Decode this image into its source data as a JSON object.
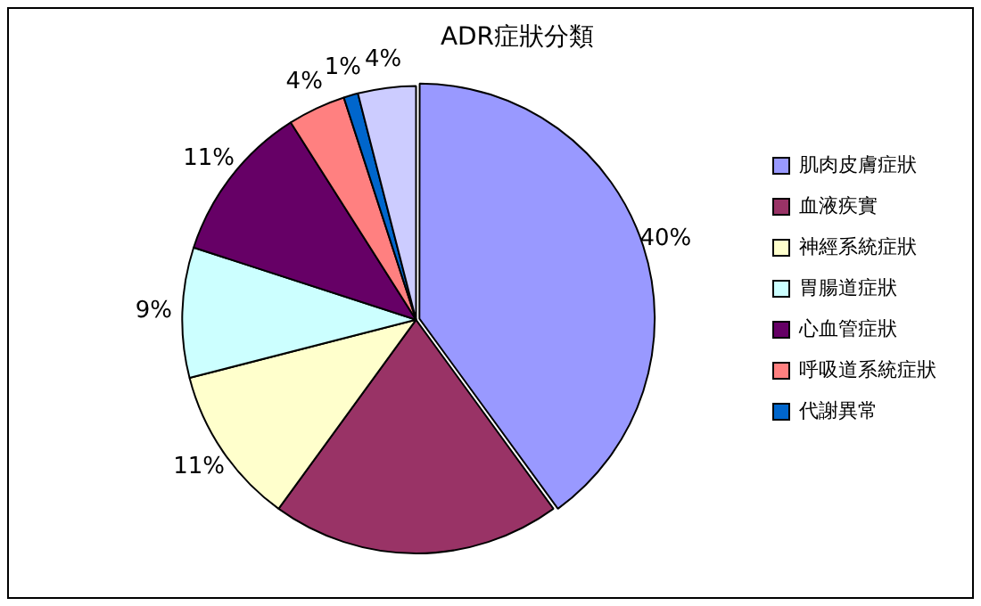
{
  "chart_data": {
    "type": "pie",
    "title": "ADR症狀分類",
    "categories": [
      "肌肉皮膚症狀",
      "血液疾實",
      "神經系統症狀",
      "胃腸道症狀",
      "心血管症狀",
      "呼吸道系統症狀",
      "代謝異常",
      null
    ],
    "values": [
      40,
      20,
      11,
      9,
      11,
      4,
      1,
      4
    ],
    "colors": [
      "#9999ff",
      "#993366",
      "#ffffcc",
      "#ccffff",
      "#660066",
      "#ff8080",
      "#0066cc",
      "#ccccff"
    ],
    "value_labels": [
      "40%",
      null,
      "11%",
      "9%",
      "11%",
      "4%",
      "1%",
      "4%"
    ],
    "legend": "right"
  }
}
